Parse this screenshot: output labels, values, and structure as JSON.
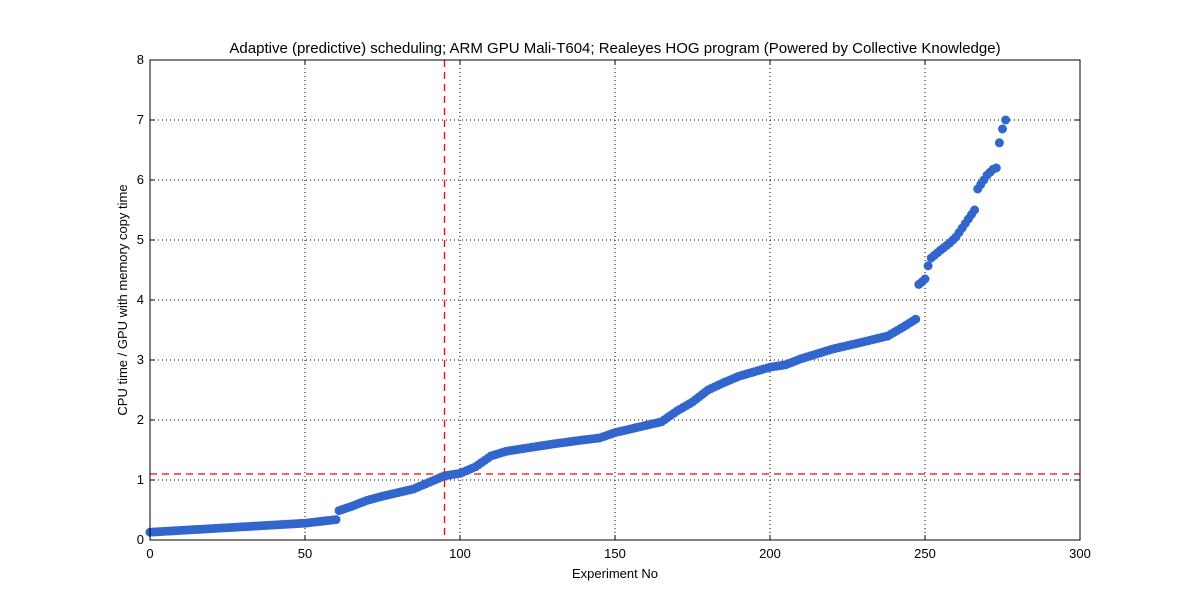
{
  "chart_data": {
    "type": "scatter",
    "title": "Adaptive (predictive) scheduling; ARM GPU Mali-T604; Realeyes HOG program (Powered by Collective Knowledge)",
    "xlabel": "Experiment No",
    "ylabel": "CPU time / GPU with memory copy time",
    "xlim": [
      0,
      300
    ],
    "ylim": [
      0,
      8
    ],
    "xticks": [
      0,
      50,
      100,
      150,
      200,
      250,
      300
    ],
    "yticks": [
      0,
      1,
      2,
      3,
      4,
      5,
      6,
      7,
      8
    ],
    "grid": true,
    "marker_color": "#3366cc",
    "reference_line_color": "#ff0000",
    "reference_lines": {
      "x": 95,
      "y": 1.1
    },
    "points_curve": [
      [
        0,
        0.13
      ],
      [
        10,
        0.16
      ],
      [
        20,
        0.19
      ],
      [
        30,
        0.22
      ],
      [
        40,
        0.25
      ],
      [
        50,
        0.28
      ],
      [
        60,
        0.34
      ],
      [
        61,
        0.49
      ],
      [
        65,
        0.56
      ],
      [
        70,
        0.66
      ],
      [
        75,
        0.73
      ],
      [
        80,
        0.79
      ],
      [
        85,
        0.85
      ],
      [
        90,
        0.96
      ],
      [
        95,
        1.07
      ],
      [
        100,
        1.11
      ],
      [
        105,
        1.22
      ],
      [
        110,
        1.4
      ],
      [
        115,
        1.48
      ],
      [
        120,
        1.52
      ],
      [
        130,
        1.6
      ],
      [
        140,
        1.67
      ],
      [
        145,
        1.7
      ],
      [
        150,
        1.79
      ],
      [
        160,
        1.91
      ],
      [
        165,
        1.97
      ],
      [
        170,
        2.15
      ],
      [
        175,
        2.3
      ],
      [
        180,
        2.5
      ],
      [
        185,
        2.62
      ],
      [
        190,
        2.73
      ],
      [
        200,
        2.88
      ],
      [
        205,
        2.92
      ],
      [
        210,
        3.02
      ],
      [
        220,
        3.18
      ],
      [
        230,
        3.3
      ],
      [
        238,
        3.4
      ],
      [
        243,
        3.55
      ],
      [
        247,
        3.68
      ],
      [
        248,
        4.26
      ],
      [
        249,
        4.3
      ],
      [
        250,
        4.35
      ],
      [
        251,
        4.57
      ],
      [
        252,
        4.7
      ],
      [
        255,
        4.83
      ],
      [
        258,
        4.95
      ],
      [
        260,
        5.05
      ],
      [
        262,
        5.2
      ],
      [
        264,
        5.35
      ],
      [
        266,
        5.5
      ],
      [
        267,
        5.85
      ],
      [
        269,
        6.0
      ],
      [
        270,
        6.08
      ],
      [
        272,
        6.18
      ],
      [
        273,
        6.2
      ],
      [
        274,
        6.62
      ],
      [
        275,
        6.85
      ],
      [
        276,
        7.0
      ]
    ],
    "n_points": 276
  }
}
